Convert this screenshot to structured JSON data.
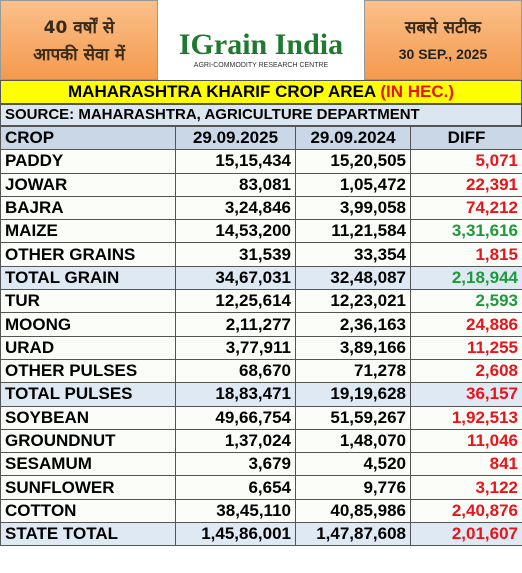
{
  "header": {
    "left": [
      "40 वर्षों से",
      "आपकी सेवा में"
    ],
    "logo": "IGrain India",
    "logo_sub": "AGRI-COMMODITY RESEARCH CENTRE",
    "right": "सबसे सटीक",
    "date": "30 SEP., 2025"
  },
  "table": {
    "title": "MAHARASHTRA KHARIF CROP AREA",
    "unit": "(IN HEC.)",
    "source": "SOURCE: MAHARASHTRA, AGRICULTURE DEPARTMENT",
    "columns": [
      "CROP",
      "29.09.2025",
      "29.09.2024",
      "DIFF"
    ],
    "rows": [
      [
        "PADDY",
        "15,15,434",
        "15,20,505",
        "5,071"
      ],
      [
        "JOWAR",
        "83,081",
        "1,05,472",
        "22,391"
      ],
      [
        "BAJRA",
        "3,24,846",
        "3,99,058",
        "74,212"
      ],
      [
        "MAIZE",
        "14,53,200",
        "11,21,584",
        "3,31,616"
      ],
      [
        "OTHER GRAINS",
        "31,539",
        "33,354",
        "1,815"
      ],
      [
        "TOTAL GRAIN",
        "34,67,031",
        "32,48,087",
        "2,18,944"
      ],
      [
        "TUR",
        "12,25,614",
        "12,23,021",
        "2,593"
      ],
      [
        "MOONG",
        "2,11,277",
        "2,36,163",
        "24,886"
      ],
      [
        "URAD",
        "3,77,911",
        "3,89,166",
        "11,255"
      ],
      [
        "OTHER PULSES",
        "68,670",
        "71,278",
        "2,608"
      ],
      [
        "TOTAL PULSES",
        "18,83,471",
        "19,19,628",
        "36,157"
      ],
      [
        "SOYBEAN",
        "49,66,754",
        "51,59,267",
        "1,92,513"
      ],
      [
        "GROUNDNUT",
        "1,37,024",
        "1,48,070",
        "11,046"
      ],
      [
        "SESAMUM",
        "3,679",
        "4,520",
        "841"
      ],
      [
        "SUNFLOWER",
        "6,654",
        "9,776",
        "3,122"
      ],
      [
        "COTTON",
        "38,45,110",
        "40,85,986",
        "2,40,876"
      ],
      [
        "STATE TOTAL",
        "1,45,86,001",
        "1,47,87,608",
        "2,01,607"
      ]
    ],
    "diff_colors": [
      "#e8141b",
      "#e8141b",
      "#e8141b",
      "#1e9a3a",
      "#e8141b",
      "#1e9a3a",
      "#1e9a3a",
      "#e8141b",
      "#e8141b",
      "#e8141b",
      "#e8141b",
      "#e8141b",
      "#e8141b",
      "#e8141b",
      "#e8141b",
      "#e8141b",
      "#e8141b"
    ],
    "shaded_rows": [
      5,
      10,
      16
    ]
  }
}
